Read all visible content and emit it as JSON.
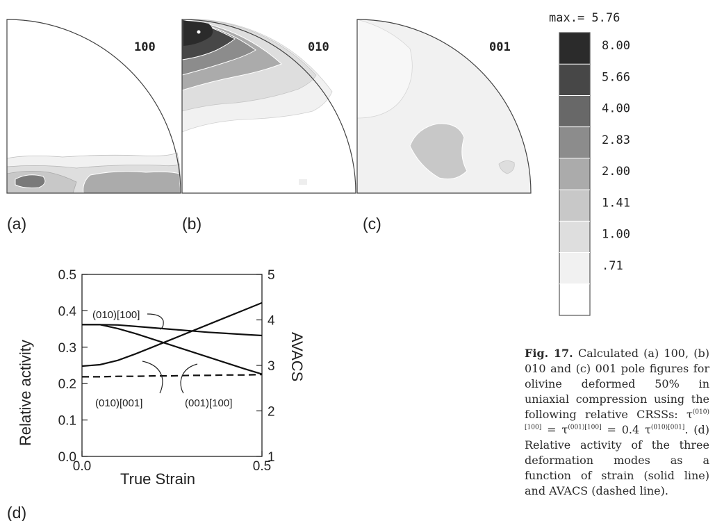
{
  "pole_figures": {
    "panels": [
      {
        "label": "100",
        "letter": "(a)"
      },
      {
        "label": "010",
        "letter": "(b)"
      },
      {
        "label": "001",
        "letter": "(c)"
      }
    ],
    "legend": {
      "max_text": "max.= 5.76",
      "levels": [
        "8.00",
        "5.66",
        "4.00",
        "2.83",
        "2.00",
        "1.41",
        "1.00",
        ".71"
      ],
      "colors": [
        "#2b2b2b",
        "#474747",
        "#686868",
        "#8c8c8c",
        "#ababab",
        "#c8c8c8",
        "#dedede",
        "#f1f1f1"
      ]
    }
  },
  "chart_data": {
    "type": "line",
    "panel_letter": "(d)",
    "xlabel": "True Strain",
    "ylabel": "Relative activity",
    "y2label": "AVACS",
    "xlim": [
      0.0,
      0.5
    ],
    "ylim": [
      0.0,
      0.5
    ],
    "y2lim": [
      1,
      5
    ],
    "x_ticks": [
      "0.0",
      "0.5"
    ],
    "y_ticks": [
      "0.0",
      "0.1",
      "0.2",
      "0.3",
      "0.4",
      "0.5"
    ],
    "y2_ticks": [
      "1",
      "2",
      "3",
      "4",
      "5"
    ],
    "x": [
      0.0,
      0.05,
      0.1,
      0.15,
      0.2,
      0.25,
      0.3,
      0.35,
      0.4,
      0.45,
      0.5
    ],
    "series": [
      {
        "name": "(010)[100]",
        "axis": "left",
        "style": "solid",
        "values": [
          0.362,
          0.362,
          0.361,
          0.357,
          0.353,
          0.349,
          0.345,
          0.341,
          0.338,
          0.335,
          0.332
        ]
      },
      {
        "name": "(010)[001]",
        "axis": "left",
        "style": "solid",
        "values": [
          0.248,
          0.252,
          0.264,
          0.282,
          0.302,
          0.322,
          0.342,
          0.362,
          0.382,
          0.402,
          0.422
        ]
      },
      {
        "name": "(001)[100]",
        "axis": "left",
        "style": "solid",
        "values": [
          0.362,
          0.362,
          0.351,
          0.337,
          0.321,
          0.305,
          0.289,
          0.273,
          0.257,
          0.241,
          0.226
        ]
      },
      {
        "name": "AVACS",
        "axis": "right",
        "style": "dashed",
        "values": [
          2.75,
          2.75,
          2.76,
          2.76,
          2.77,
          2.77,
          2.78,
          2.78,
          2.79,
          2.79,
          2.8
        ]
      }
    ],
    "annotations": [
      "(010)[100]",
      "(010)[001]",
      "(001)[100]"
    ]
  },
  "caption": {
    "fig_no": "Fig. 17.",
    "t1": " Calculated (a) 100, (b) 010 and (c) 001 pole figures for olivine deformed 50% in uniaxial compression using the following relative CRSSs: τ",
    "s1": "(010)[100]",
    "t2": " = τ",
    "s2": "(001)[100]",
    "t3": " = 0.4 τ",
    "s3": "(010)[001]",
    "t4": ". (d) Relative activity of the three deformation modes as a function of strain (solid line) and AVACS (dashed line)."
  }
}
